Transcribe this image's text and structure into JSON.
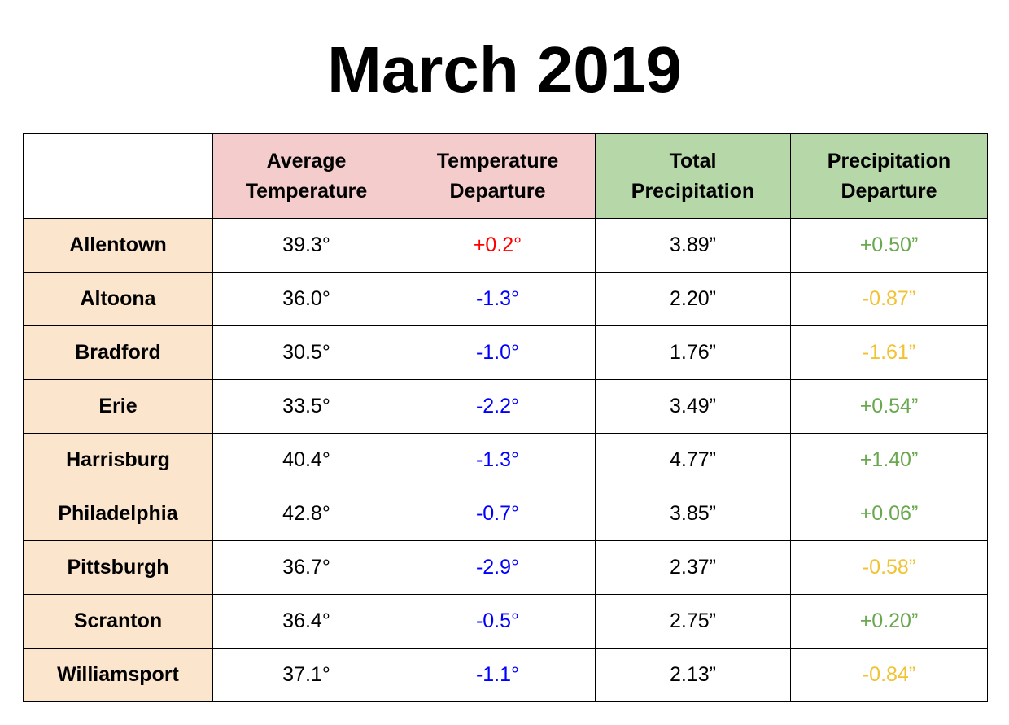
{
  "title": "March 2019",
  "colors": {
    "temp_header_bg": "#f4cccc",
    "precip_header_bg": "#b6d7a8",
    "city_bg": "#fce5cd",
    "positive_temp_departure": "#ff0000",
    "negative_temp_departure": "#0000ff",
    "positive_precip_departure": "#6aa84f",
    "negative_precip_departure": "#f1c232"
  },
  "chart_data": {
    "type": "table",
    "title": "March 2019",
    "columns": [
      "",
      "Average Temperature",
      "Temperature Departure",
      "Total Precipitation",
      "Precipitation Departure"
    ],
    "header_lines": [
      [],
      [
        "Average",
        "Temperature"
      ],
      [
        "Temperature",
        "Departure"
      ],
      [
        "Total",
        "Precipitation"
      ],
      [
        "Precipitation",
        "Departure"
      ]
    ],
    "rows": [
      {
        "city": "Allentown",
        "avg_temp": "39.3°",
        "temp_dep": "+0.2°",
        "total_precip": "3.89”",
        "precip_dep": "+0.50”",
        "temp_dep_class": "warm",
        "precip_dep_class": "wet"
      },
      {
        "city": "Altoona",
        "avg_temp": "36.0°",
        "temp_dep": "-1.3°",
        "total_precip": "2.20”",
        "precip_dep": "-0.87”",
        "temp_dep_class": "cold",
        "precip_dep_class": "dry"
      },
      {
        "city": "Bradford",
        "avg_temp": "30.5°",
        "temp_dep": "-1.0°",
        "total_precip": "1.76”",
        "precip_dep": "-1.61”",
        "temp_dep_class": "cold",
        "precip_dep_class": "dry"
      },
      {
        "city": "Erie",
        "avg_temp": "33.5°",
        "temp_dep": "-2.2°",
        "total_precip": "3.49”",
        "precip_dep": "+0.54”",
        "temp_dep_class": "cold",
        "precip_dep_class": "wet"
      },
      {
        "city": "Harrisburg",
        "avg_temp": "40.4°",
        "temp_dep": "-1.3°",
        "total_precip": "4.77”",
        "precip_dep": "+1.40”",
        "temp_dep_class": "cold",
        "precip_dep_class": "wet"
      },
      {
        "city": "Philadelphia",
        "avg_temp": "42.8°",
        "temp_dep": "-0.7°",
        "total_precip": "3.85”",
        "precip_dep": "+0.06”",
        "temp_dep_class": "cold",
        "precip_dep_class": "wet"
      },
      {
        "city": "Pittsburgh",
        "avg_temp": "36.7°",
        "temp_dep": "-2.9°",
        "total_precip": "2.37”",
        "precip_dep": "-0.58”",
        "temp_dep_class": "cold",
        "precip_dep_class": "dry"
      },
      {
        "city": "Scranton",
        "avg_temp": "36.4°",
        "temp_dep": "-0.5°",
        "total_precip": "2.75”",
        "precip_dep": "+0.20”",
        "temp_dep_class": "cold",
        "precip_dep_class": "wet"
      },
      {
        "city": "Williamsport",
        "avg_temp": "37.1°",
        "temp_dep": "-1.1°",
        "total_precip": "2.13”",
        "precip_dep": "-0.84”",
        "temp_dep_class": "cold",
        "precip_dep_class": "dry"
      }
    ]
  }
}
